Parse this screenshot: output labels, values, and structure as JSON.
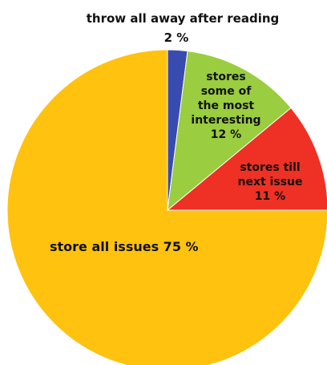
{
  "chart_data": {
    "type": "pie",
    "title": "",
    "slices": [
      {
        "label": "throw all away after reading",
        "value": 2,
        "value_text": "2 %",
        "color": "#3a4bb0"
      },
      {
        "label": "stores some of the most interesting",
        "value": 12,
        "value_text": "12 %",
        "color": "#9acd3f"
      },
      {
        "label": "stores till next issue",
        "value": 11,
        "value_text": "11 %",
        "color": "#ee3124"
      },
      {
        "label": "store all issues",
        "value": 75,
        "value_text": "75 %",
        "color": "#ffc20e"
      }
    ],
    "label_text": {
      "throw_all_away": "throw all away after reading",
      "throw_all_away_value": "2 %",
      "stores_some_line1": "stores",
      "stores_some_line2": "some of",
      "stores_some_line3": "the most",
      "stores_some_line4": "interesting",
      "stores_some_value": "12 %",
      "stores_till_line1": "stores till",
      "stores_till_line2": "next issue",
      "stores_till_value": "11 %",
      "store_all": "store all issues 75 %"
    },
    "start_angle_deg": 0,
    "direction": "clockwise"
  }
}
